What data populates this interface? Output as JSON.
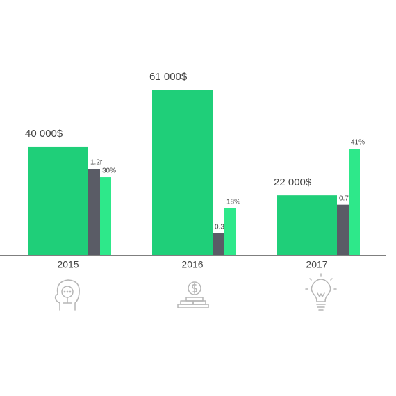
{
  "chart_data": {
    "type": "bar",
    "categories": [
      "2015",
      "2016",
      "2017"
    ],
    "series": [
      {
        "color": "#1fcf79",
        "values": [
          40000,
          61000,
          22000
        ],
        "value_labels": [
          "40 000$",
          "61 000$",
          "22 000$"
        ]
      },
      {
        "color": "#5a5c66",
        "values": [
          1.2,
          0.3,
          0.7
        ],
        "value_labels": [
          "1.2r",
          "0.3r",
          "0.7r"
        ]
      },
      {
        "color": "#2ee88a",
        "values": [
          30,
          18,
          41
        ],
        "value_labels": [
          "30%",
          "18%",
          "41%"
        ]
      }
    ]
  }
}
